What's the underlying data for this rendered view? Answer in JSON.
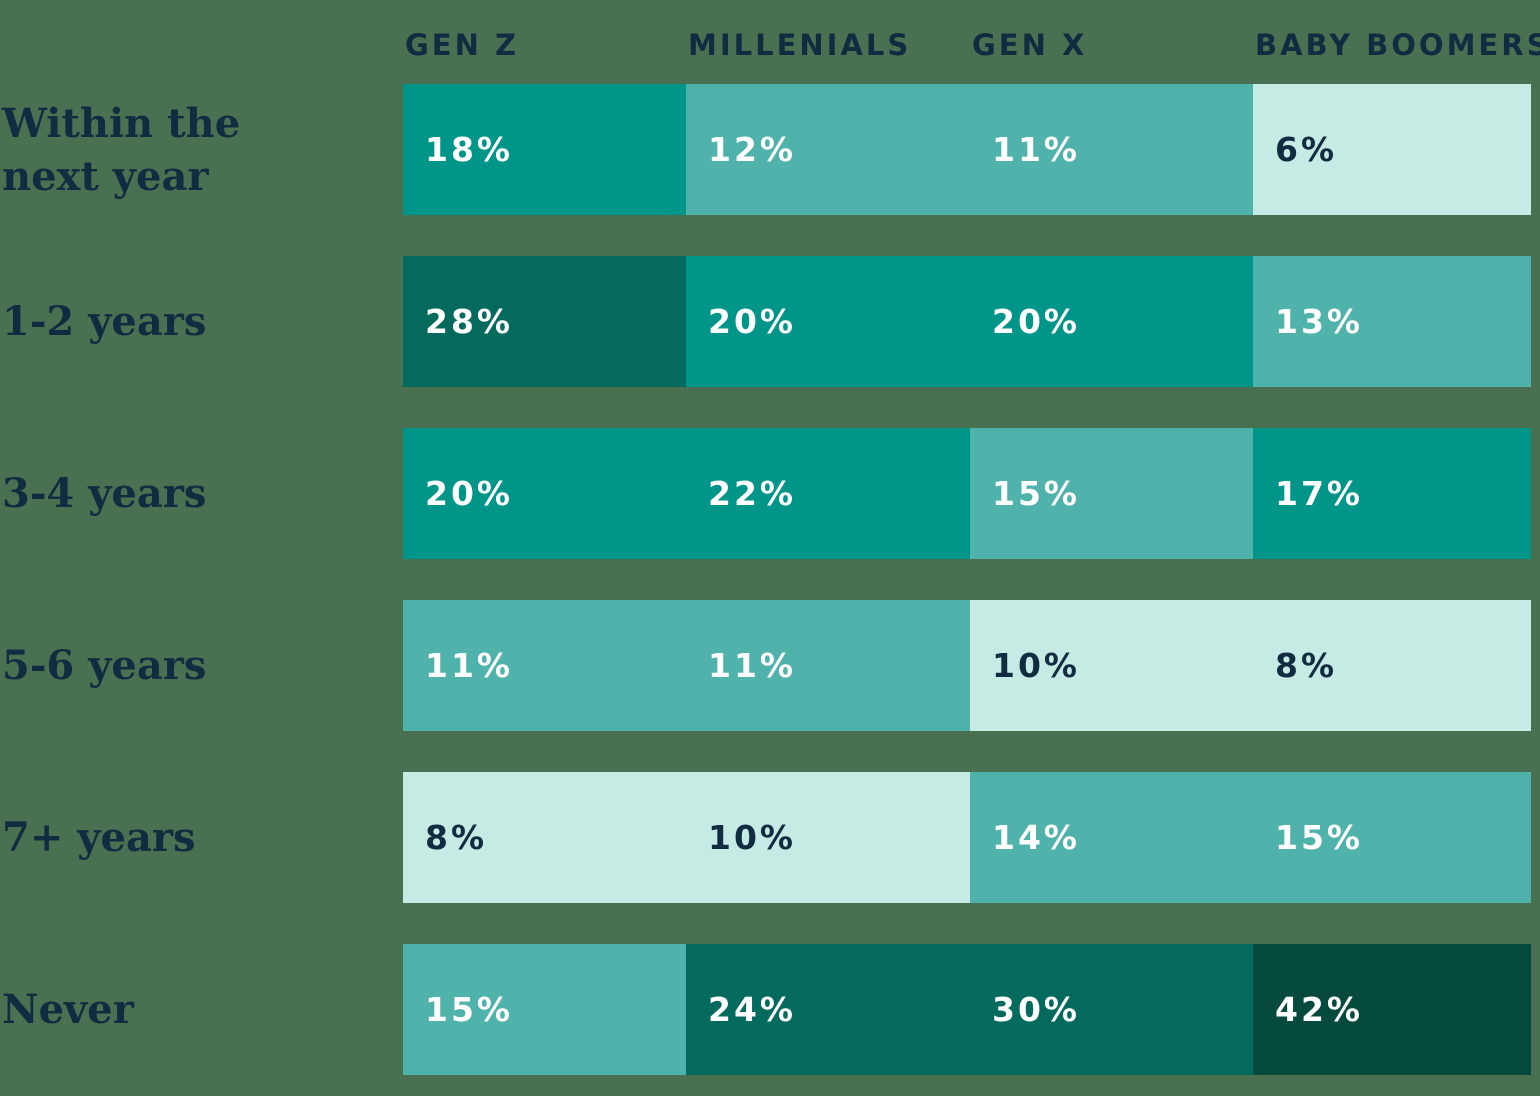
{
  "colors": {
    "background": "#4A7052",
    "text_dark": "#112C40",
    "text_light": "#FFFFFF",
    "teal": "#009589",
    "teal_medium": "#4FB2AB",
    "teal_light": "#C6EAE4",
    "teal_dark": "#056A5E",
    "teal_darkest": "#064A3E"
  },
  "chart_data": {
    "type": "heatmap",
    "title": "",
    "columns": [
      "GEN Z",
      "MILLENIALS",
      "GEN X",
      "BABY BOOMERS"
    ],
    "row_categories": [
      "Within the next year",
      "1-2 years",
      "3-4 years",
      "5-6 years",
      "7+ years",
      "Never"
    ],
    "unit": "percent",
    "series": [
      {
        "name": "GEN Z",
        "values": [
          18,
          28,
          20,
          11,
          8,
          15
        ]
      },
      {
        "name": "MILLENIALS",
        "values": [
          12,
          20,
          22,
          11,
          10,
          24
        ]
      },
      {
        "name": "GEN X",
        "values": [
          11,
          20,
          15,
          10,
          14,
          30
        ]
      },
      {
        "name": "BABY BOOMERS",
        "values": [
          6,
          13,
          17,
          8,
          15,
          42
        ]
      }
    ],
    "color_scale": {
      "bins": [
        {
          "range": "0-10",
          "tone": "light",
          "hex": "#C6EAE4"
        },
        {
          "range": "11-15",
          "tone": "medium",
          "hex": "#4FB2AB"
        },
        {
          "range": "16-22",
          "tone": "teal",
          "hex": "#009589"
        },
        {
          "range": "23-30",
          "tone": "dark",
          "hex": "#056A5E"
        },
        {
          "range": "31+",
          "tone": "darkest",
          "hex": "#064A3E"
        }
      ]
    },
    "legend_position": "none",
    "grid": false
  },
  "table": {
    "headers": [
      "GEN Z",
      "MILLENIALS",
      "GEN X",
      "BABY BOOMERS"
    ],
    "rows": [
      {
        "label": "Within the next year",
        "cells": [
          {
            "text": "18%",
            "tone": "teal"
          },
          {
            "text": "12%",
            "tone": "medium"
          },
          {
            "text": "11%",
            "tone": "medium"
          },
          {
            "text": "6%",
            "tone": "light"
          }
        ]
      },
      {
        "label": "1-2 years",
        "cells": [
          {
            "text": "28%",
            "tone": "dark"
          },
          {
            "text": "20%",
            "tone": "teal"
          },
          {
            "text": "20%",
            "tone": "teal"
          },
          {
            "text": "13%",
            "tone": "medium"
          }
        ]
      },
      {
        "label": "3-4 years",
        "cells": [
          {
            "text": "20%",
            "tone": "teal"
          },
          {
            "text": "22%",
            "tone": "teal"
          },
          {
            "text": "15%",
            "tone": "medium"
          },
          {
            "text": "17%",
            "tone": "teal"
          }
        ]
      },
      {
        "label": "5-6 years",
        "cells": [
          {
            "text": "11%",
            "tone": "medium"
          },
          {
            "text": "11%",
            "tone": "medium"
          },
          {
            "text": "10%",
            "tone": "light"
          },
          {
            "text": "8%",
            "tone": "light"
          }
        ]
      },
      {
        "label": "7+ years",
        "cells": [
          {
            "text": "8%",
            "tone": "light"
          },
          {
            "text": "10%",
            "tone": "light"
          },
          {
            "text": "14%",
            "tone": "medium"
          },
          {
            "text": "15%",
            "tone": "medium"
          }
        ]
      },
      {
        "label": "Never",
        "cells": [
          {
            "text": "15%",
            "tone": "medium"
          },
          {
            "text": "24%",
            "tone": "dark"
          },
          {
            "text": "30%",
            "tone": "dark"
          },
          {
            "text": "42%",
            "tone": "darkest"
          }
        ]
      }
    ]
  }
}
